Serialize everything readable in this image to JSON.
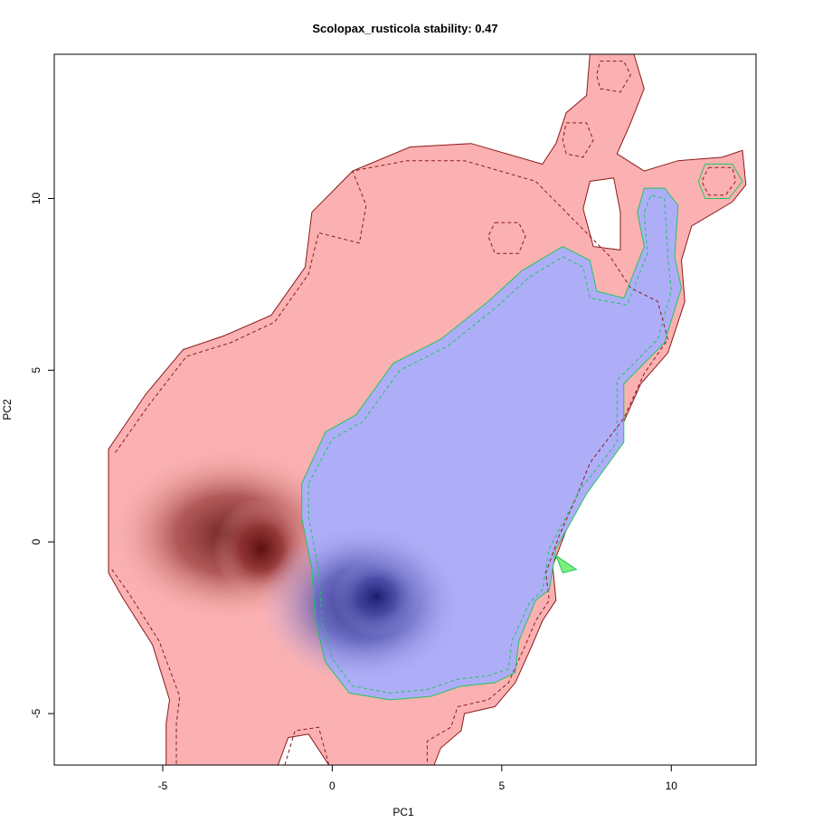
{
  "chart_data": {
    "type": "heatmap",
    "title": "Scolopax_rusticola stability: 0.47",
    "xlabel": "PC1",
    "ylabel": "PC2",
    "xlim": [
      -8.2,
      12.5
    ],
    "ylim": [
      -6.5,
      14.2
    ],
    "x_ticks": [
      -5,
      0,
      5,
      10
    ],
    "y_ticks": [
      -5,
      0,
      5,
      10
    ],
    "grid": false,
    "legend": "none",
    "colors": {
      "range_a": "#fbb1b1",
      "range_a_peak": "#5a0f0f",
      "range_b": "#aeaef8",
      "range_b_peak": "#1c1c6e",
      "contour_a": "#8b1a1a",
      "contour_b": "#22c55e",
      "axis": "#000000"
    },
    "regions": [
      {
        "role": "range A (red)",
        "boundary": [
          [
            -6.6,
            2.7
          ],
          [
            -5.5,
            4.3
          ],
          [
            -4.4,
            5.6
          ],
          [
            -3.2,
            6.0
          ],
          [
            -1.8,
            6.6
          ],
          [
            -0.8,
            8.0
          ],
          [
            -0.6,
            9.6
          ],
          [
            0.6,
            10.8
          ],
          [
            2.3,
            11.5
          ],
          [
            4.1,
            11.6
          ],
          [
            6.2,
            11.0
          ],
          [
            6.6,
            11.6
          ],
          [
            6.9,
            12.5
          ],
          [
            7.5,
            13.0
          ],
          [
            7.6,
            14.2
          ],
          [
            8.9,
            14.2
          ],
          [
            9.2,
            13.2
          ],
          [
            8.8,
            12.2
          ],
          [
            8.4,
            11.3
          ],
          [
            9.2,
            10.8
          ],
          [
            10.2,
            11.1
          ],
          [
            11.5,
            11.2
          ],
          [
            12.1,
            11.4
          ],
          [
            12.2,
            10.4
          ],
          [
            11.8,
            9.9
          ],
          [
            10.6,
            9.2
          ],
          [
            10.3,
            8.2
          ],
          [
            10.4,
            7.0
          ],
          [
            9.9,
            5.5
          ],
          [
            9.1,
            4.6
          ],
          [
            8.6,
            3.5
          ],
          [
            7.8,
            2.6
          ],
          [
            7.4,
            1.6
          ],
          [
            7.0,
            0.6
          ],
          [
            6.5,
            -0.7
          ],
          [
            6.6,
            -1.7
          ],
          [
            6.2,
            -2.3
          ],
          [
            5.9,
            -3.0
          ],
          [
            5.4,
            -4.1
          ],
          [
            4.8,
            -4.8
          ],
          [
            3.9,
            -5.0
          ],
          [
            3.8,
            -5.5
          ],
          [
            3.2,
            -6.0
          ],
          [
            3.0,
            -6.5
          ],
          [
            -0.1,
            -6.5
          ],
          [
            -0.7,
            -5.6
          ],
          [
            -1.3,
            -5.7
          ],
          [
            -1.6,
            -6.5
          ],
          [
            -4.9,
            -6.5
          ],
          [
            -4.9,
            -5.3
          ],
          [
            -4.8,
            -4.6
          ],
          [
            -5.3,
            -3.0
          ],
          [
            -6.2,
            -1.6
          ],
          [
            -6.6,
            -0.9
          ]
        ],
        "hole_boundary": [
          [
            7.6,
            10.5
          ],
          [
            8.3,
            10.6
          ],
          [
            8.5,
            9.6
          ],
          [
            8.5,
            8.5
          ],
          [
            7.7,
            8.6
          ],
          [
            7.4,
            9.7
          ]
        ],
        "peak": [
          -2.1,
          -0.2
        ]
      },
      {
        "role": "range B (blue)",
        "boundary": [
          [
            -0.9,
            1.7
          ],
          [
            -0.2,
            3.2
          ],
          [
            0.7,
            3.7
          ],
          [
            1.8,
            5.2
          ],
          [
            3.2,
            5.9
          ],
          [
            4.6,
            7.0
          ],
          [
            5.6,
            7.9
          ],
          [
            6.8,
            8.6
          ],
          [
            7.6,
            8.2
          ],
          [
            7.8,
            7.3
          ],
          [
            8.6,
            7.1
          ],
          [
            9.2,
            8.6
          ],
          [
            9.0,
            9.6
          ],
          [
            9.2,
            10.3
          ],
          [
            9.8,
            10.3
          ],
          [
            10.2,
            9.8
          ],
          [
            10.1,
            8.3
          ],
          [
            10.3,
            7.4
          ],
          [
            9.8,
            5.8
          ],
          [
            8.6,
            4.6
          ],
          [
            8.6,
            2.9
          ],
          [
            7.5,
            1.4
          ],
          [
            6.6,
            -0.2
          ],
          [
            6.4,
            -1.4
          ],
          [
            6.0,
            -1.7
          ],
          [
            5.5,
            -2.9
          ],
          [
            5.4,
            -3.8
          ],
          [
            4.8,
            -4.1
          ],
          [
            3.8,
            -4.2
          ],
          [
            2.9,
            -4.5
          ],
          [
            1.7,
            -4.6
          ],
          [
            0.5,
            -4.4
          ],
          [
            -0.2,
            -3.5
          ],
          [
            -0.5,
            -2.3
          ],
          [
            -0.6,
            -0.8
          ],
          [
            -0.9,
            0.7
          ]
        ],
        "peak": [
          1.3,
          -1.6
        ]
      }
    ],
    "dashed_contours": [
      {
        "role": "outer dashed contour",
        "points": [
          [
            -6.4,
            2.6
          ],
          [
            -5.4,
            4.0
          ],
          [
            -4.3,
            5.4
          ],
          [
            -3.0,
            5.8
          ],
          [
            -1.7,
            6.4
          ],
          [
            -0.7,
            7.8
          ],
          [
            -0.4,
            9.0
          ],
          [
            0.8,
            8.7
          ],
          [
            1.0,
            9.8
          ],
          [
            0.6,
            10.8
          ],
          [
            2.2,
            11.1
          ],
          [
            3.9,
            11.1
          ],
          [
            6.0,
            10.5
          ],
          [
            7.0,
            9.5
          ],
          [
            8.2,
            8.3
          ],
          [
            8.8,
            7.4
          ],
          [
            9.6,
            7.0
          ],
          [
            9.9,
            5.9
          ],
          [
            9.2,
            4.9
          ],
          [
            8.6,
            3.6
          ],
          [
            7.6,
            2.3
          ],
          [
            7.2,
            1.3
          ],
          [
            6.7,
            0.2
          ],
          [
            6.3,
            -0.9
          ],
          [
            6.4,
            -1.7
          ],
          [
            6.0,
            -2.3
          ],
          [
            5.7,
            -3.0
          ],
          [
            5.2,
            -4.1
          ],
          [
            4.6,
            -4.6
          ],
          [
            3.7,
            -4.8
          ],
          [
            3.5,
            -5.4
          ],
          [
            2.8,
            -5.8
          ],
          [
            2.8,
            -6.5
          ]
        ]
      },
      {
        "role": "bottom lobe dashed contour",
        "points": [
          [
            -1.4,
            -6.5
          ],
          [
            -1.1,
            -5.5
          ],
          [
            -0.4,
            -5.4
          ],
          [
            -0.1,
            -6.5
          ]
        ]
      },
      {
        "role": "left dashed contour",
        "points": [
          [
            -6.5,
            -0.8
          ],
          [
            -6.0,
            -1.5
          ],
          [
            -5.1,
            -2.9
          ],
          [
            -4.5,
            -4.5
          ],
          [
            -4.6,
            -5.3
          ],
          [
            -4.6,
            -6.5
          ]
        ]
      },
      {
        "role": "small ring at (5.2, 8.9)",
        "points": [
          [
            4.8,
            9.3
          ],
          [
            5.5,
            9.3
          ],
          [
            5.7,
            8.9
          ],
          [
            5.5,
            8.4
          ],
          [
            4.8,
            8.4
          ],
          [
            4.6,
            8.9
          ],
          [
            4.8,
            9.3
          ]
        ]
      },
      {
        "role": "ring at (7.2, 11.7)",
        "points": [
          [
            6.9,
            12.2
          ],
          [
            7.5,
            12.2
          ],
          [
            7.7,
            11.7
          ],
          [
            7.4,
            11.2
          ],
          [
            6.9,
            11.3
          ],
          [
            6.8,
            11.7
          ],
          [
            6.9,
            12.2
          ]
        ]
      },
      {
        "role": "ring at (8.2, 13.6)",
        "points": [
          [
            7.9,
            14.0
          ],
          [
            8.6,
            14.0
          ],
          [
            8.8,
            13.6
          ],
          [
            8.5,
            13.1
          ],
          [
            7.9,
            13.2
          ],
          [
            7.8,
            13.6
          ],
          [
            7.9,
            14.0
          ]
        ]
      },
      {
        "role": "ring at (11.4, 10.5)",
        "points": [
          [
            11.1,
            10.9
          ],
          [
            11.8,
            10.9
          ],
          [
            11.9,
            10.5
          ],
          [
            11.6,
            10.1
          ],
          [
            11.1,
            10.1
          ],
          [
            10.9,
            10.5
          ],
          [
            11.1,
            10.9
          ]
        ]
      }
    ],
    "green_contours": [
      {
        "role": "range B outline",
        "points": [
          [
            -0.9,
            1.7
          ],
          [
            -0.2,
            3.2
          ],
          [
            0.7,
            3.7
          ],
          [
            1.8,
            5.2
          ],
          [
            3.2,
            5.9
          ],
          [
            4.6,
            7.0
          ],
          [
            5.6,
            7.9
          ],
          [
            6.8,
            8.6
          ],
          [
            7.6,
            8.2
          ],
          [
            7.8,
            7.3
          ],
          [
            8.6,
            7.1
          ],
          [
            9.2,
            8.6
          ],
          [
            9.0,
            9.6
          ],
          [
            9.2,
            10.3
          ],
          [
            9.8,
            10.3
          ],
          [
            10.2,
            9.8
          ],
          [
            10.1,
            8.3
          ],
          [
            10.3,
            7.4
          ],
          [
            9.8,
            5.8
          ],
          [
            8.6,
            4.6
          ],
          [
            8.6,
            2.9
          ],
          [
            7.5,
            1.4
          ],
          [
            6.6,
            -0.2
          ],
          [
            6.4,
            -1.4
          ],
          [
            6.0,
            -1.7
          ],
          [
            5.5,
            -2.9
          ],
          [
            5.4,
            -3.8
          ],
          [
            4.8,
            -4.1
          ],
          [
            3.8,
            -4.2
          ],
          [
            2.9,
            -4.5
          ],
          [
            1.7,
            -4.6
          ],
          [
            0.5,
            -4.4
          ],
          [
            -0.2,
            -3.5
          ],
          [
            -0.5,
            -2.3
          ],
          [
            -0.6,
            -0.8
          ],
          [
            -0.9,
            0.7
          ],
          [
            -0.9,
            1.7
          ]
        ]
      },
      {
        "role": "inner dashed outline",
        "points": [
          [
            -0.7,
            1.7
          ],
          [
            0.0,
            3.0
          ],
          [
            0.9,
            3.5
          ],
          [
            2.0,
            5.0
          ],
          [
            3.4,
            5.7
          ],
          [
            4.8,
            6.8
          ],
          [
            5.8,
            7.7
          ],
          [
            6.8,
            8.3
          ],
          [
            7.4,
            8.0
          ],
          [
            7.6,
            7.1
          ],
          [
            8.7,
            6.9
          ],
          [
            9.3,
            8.4
          ],
          [
            9.2,
            9.6
          ],
          [
            9.4,
            10.1
          ],
          [
            9.8,
            10.0
          ],
          [
            9.9,
            8.3
          ],
          [
            10.0,
            7.3
          ],
          [
            9.6,
            5.9
          ],
          [
            8.4,
            4.7
          ],
          [
            8.4,
            2.9
          ],
          [
            7.3,
            1.5
          ],
          [
            6.4,
            -0.2
          ],
          [
            6.2,
            -1.4
          ],
          [
            5.8,
            -1.8
          ],
          [
            5.3,
            -2.9
          ],
          [
            5.2,
            -3.7
          ],
          [
            4.6,
            -3.9
          ],
          [
            3.7,
            -4.0
          ],
          [
            2.8,
            -4.3
          ],
          [
            1.7,
            -4.4
          ],
          [
            0.6,
            -4.2
          ],
          [
            0.0,
            -3.4
          ],
          [
            -0.3,
            -2.3
          ],
          [
            -0.4,
            -0.8
          ],
          [
            -0.7,
            0.7
          ],
          [
            -0.7,
            1.7
          ]
        ]
      },
      {
        "role": "ring at (11.4, 10.5)",
        "points": [
          [
            11.0,
            11.0
          ],
          [
            11.8,
            11.0
          ],
          [
            12.1,
            10.5
          ],
          [
            11.7,
            10.0
          ],
          [
            11.0,
            10.0
          ],
          [
            10.8,
            10.5
          ],
          [
            11.0,
            11.0
          ]
        ]
      },
      {
        "role": "small spur at (7.0, -0.8)",
        "points": [
          [
            6.6,
            -0.4
          ],
          [
            7.2,
            -0.8
          ],
          [
            6.8,
            -0.9
          ],
          [
            6.6,
            -0.4
          ]
        ]
      }
    ]
  }
}
